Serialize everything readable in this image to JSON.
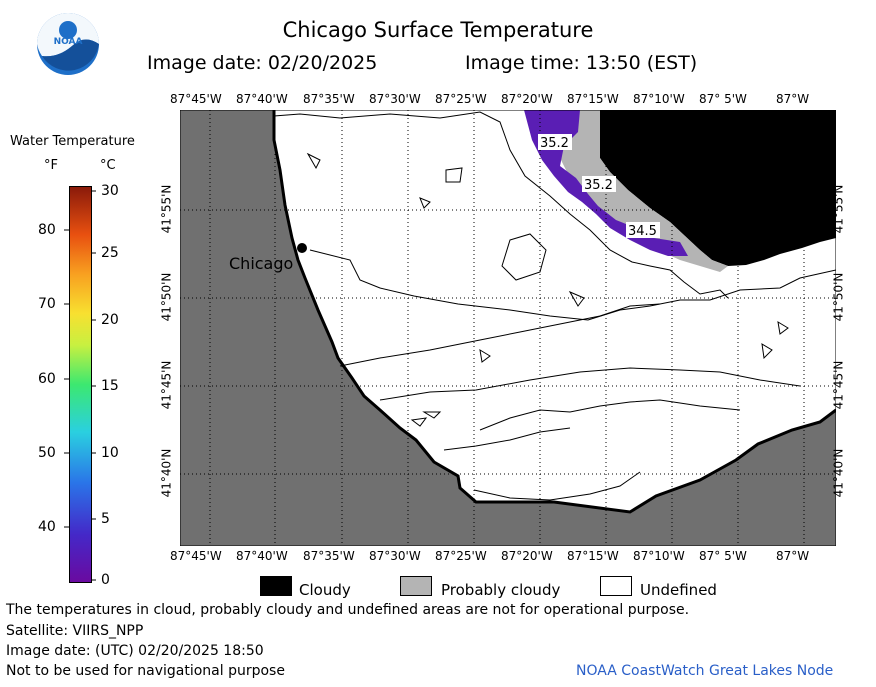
{
  "header": {
    "title": "Chicago Surface Temperature",
    "image_date": "Image date: 02/20/2025",
    "image_time": "Image time: 13:50 (EST)"
  },
  "logo": {
    "text": "NOAA",
    "icon": "noaa-logo-icon"
  },
  "colorbar": {
    "title": "Water Temperature",
    "unit_f": "°F",
    "unit_c": "°C",
    "f_ticks": [
      "80",
      "70",
      "60",
      "50",
      "40"
    ],
    "c_ticks": [
      "30",
      "25",
      "20",
      "15",
      "10",
      "5",
      "0"
    ]
  },
  "map": {
    "lon_labels": [
      "87°45'W",
      "87°40'W",
      "87°35'W",
      "87°30'W",
      "87°25'W",
      "87°20'W",
      "87°15'W",
      "87°10'W",
      "87° 5'W",
      "87°W"
    ],
    "lat_labels": [
      "41°55'N",
      "41°50'N",
      "41°45'N",
      "41°40'N"
    ],
    "city_label": "Chicago",
    "isotherm_labels": [
      "35.2",
      "35.2",
      "34.5"
    ],
    "colors": {
      "land": "#707070",
      "cloud": "#000000",
      "probably_cloudy": "#b4b4b4",
      "water_cold": "#5a1eb4",
      "undefined": "#ffffff"
    }
  },
  "legend": {
    "cloudy": "Cloudy",
    "probably_cloudy": "Probably cloudy",
    "undefined": "Undefined"
  },
  "footer": {
    "disclaimer": "The temperatures in cloud, probably cloudy and undefined areas are not for operational purpose.",
    "satellite": "Satellite: VIIRS_NPP",
    "utc_date": "Image date: (UTC) 02/20/2025  18:50",
    "nav_warning": "Not to be used for navigational purpose",
    "credit": "NOAA CoastWatch Great Lakes Node"
  }
}
